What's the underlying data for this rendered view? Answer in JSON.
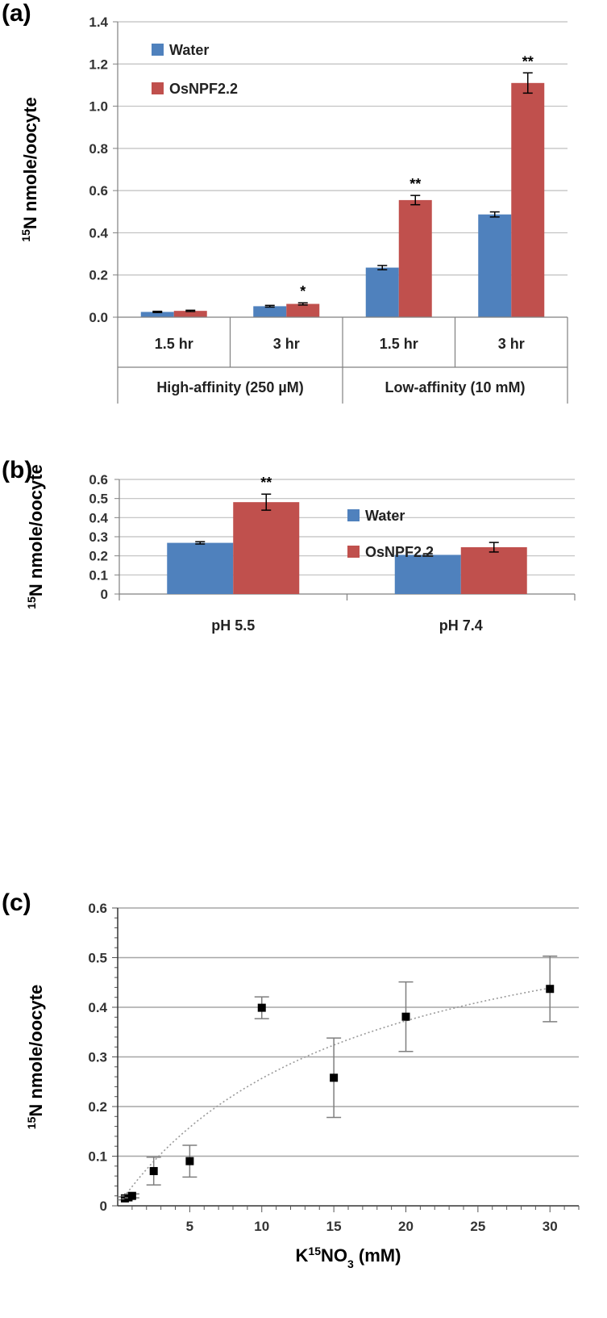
{
  "panels": {
    "a": {
      "label": "(a)"
    },
    "b": {
      "label": "(b)"
    },
    "c": {
      "label": "(c)"
    }
  },
  "chart_data": [
    {
      "id": "a",
      "type": "bar",
      "ylabel_sup": "15",
      "ylabel_main": "N nmole/oocyte",
      "ylim": [
        0,
        1.4
      ],
      "yticks": [
        "0.0",
        "0.2",
        "0.4",
        "0.6",
        "0.8",
        "1.0",
        "1.2",
        "1.4"
      ],
      "grid": true,
      "legend_position": "top-left",
      "categories": [
        "1.5 hr",
        "3 hr",
        "1.5 hr",
        "3 hr"
      ],
      "groups": [
        "High-affinity (250 µM)",
        "Low-affinity (10 mM)"
      ],
      "series": [
        {
          "name": "Water",
          "color": "#4f81bd",
          "values": [
            0.025,
            0.052,
            0.235,
            0.487
          ],
          "errors": [
            0.003,
            0.004,
            0.01,
            0.012
          ]
        },
        {
          "name": "OsNPF2.2",
          "color": "#c0504d",
          "values": [
            0.03,
            0.063,
            0.555,
            1.11
          ],
          "errors": [
            0.003,
            0.005,
            0.022,
            0.048
          ]
        }
      ],
      "significance": [
        "",
        "*",
        "**",
        "**"
      ]
    },
    {
      "id": "b",
      "type": "bar",
      "ylabel_sup": "15",
      "ylabel_main": "N nmole/oocyte",
      "ylim": [
        0,
        0.6
      ],
      "yticks": [
        "0",
        "0.1",
        "0.2",
        "0.3",
        "0.4",
        "0.5",
        "0.6"
      ],
      "grid": true,
      "legend_position": "top-right",
      "categories": [
        "pH 5.5",
        "pH 7.4"
      ],
      "series": [
        {
          "name": "Water",
          "color": "#4f81bd",
          "values": [
            0.268,
            0.205
          ],
          "errors": [
            0.006,
            0.006
          ]
        },
        {
          "name": "OsNPF2.2",
          "color": "#c0504d",
          "values": [
            0.481,
            0.245
          ],
          "errors": [
            0.042,
            0.025
          ]
        }
      ],
      "significance": [
        "**",
        ""
      ]
    },
    {
      "id": "c",
      "type": "scatter",
      "xlabel_pre": "K",
      "xlabel_sup": "15",
      "xlabel_mid": "NO",
      "xlabel_sub": "3",
      "xlabel_post": " (mM)",
      "ylabel_sup": "15",
      "ylabel_main": "N nmole/oocyte",
      "xlim": [
        0,
        32
      ],
      "ylim": [
        0,
        0.6
      ],
      "xticks": [
        "5",
        "10",
        "15",
        "20",
        "25",
        "30"
      ],
      "yticks": [
        "0",
        "0.1",
        "0.2",
        "0.3",
        "0.4",
        "0.5",
        "0.6"
      ],
      "grid": true,
      "points": [
        {
          "x": 0.5,
          "y": 0.015,
          "err": 0.003
        },
        {
          "x": 0.75,
          "y": 0.017,
          "err": 0.003
        },
        {
          "x": 1.0,
          "y": 0.02,
          "err": 0.004
        },
        {
          "x": 2.5,
          "y": 0.07,
          "err": 0.028
        },
        {
          "x": 5,
          "y": 0.09,
          "err": 0.032
        },
        {
          "x": 10,
          "y": 0.399,
          "err": 0.022
        },
        {
          "x": 15,
          "y": 0.258,
          "err": 0.08
        },
        {
          "x": 20,
          "y": 0.381,
          "err": 0.07
        },
        {
          "x": 30,
          "y": 0.437,
          "err": 0.066
        }
      ],
      "fit": {
        "style": "dotted",
        "color": "#999999",
        "vmax": 0.68,
        "km": 16.5
      }
    }
  ]
}
